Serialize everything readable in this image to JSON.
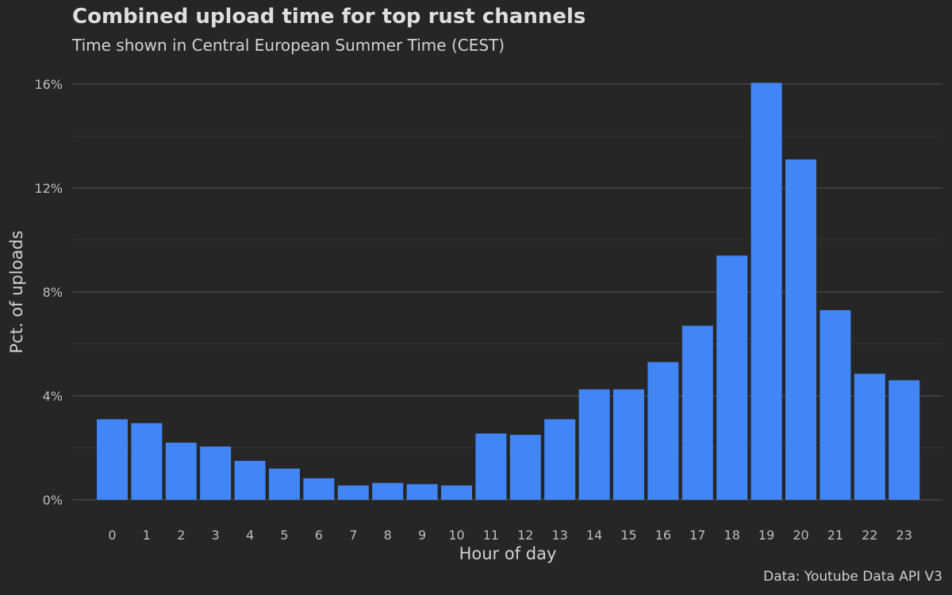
{
  "title": "Combined upload time for top rust channels",
  "subtitle": "Time shown in Central European Summer Time (CEST)",
  "caption": "Data: Youtube Data API V3",
  "colors": {
    "background": "#262626",
    "bar": "#4285f4",
    "grid_major": "#454545",
    "grid_minor": "#363636",
    "text": "#d9d9d9"
  },
  "chart_data": {
    "type": "bar",
    "title": "Combined upload time for top rust channels",
    "subtitle": "Time shown in Central European Summer Time (CEST)",
    "xlabel": "Hour of day",
    "ylabel": "Pct. of uploads",
    "categories": [
      "0",
      "1",
      "2",
      "3",
      "4",
      "5",
      "6",
      "7",
      "8",
      "9",
      "10",
      "11",
      "12",
      "13",
      "14",
      "15",
      "16",
      "17",
      "18",
      "19",
      "20",
      "21",
      "22",
      "23"
    ],
    "values": [
      3.1,
      2.95,
      2.2,
      2.05,
      1.5,
      1.2,
      0.83,
      0.55,
      0.65,
      0.6,
      0.55,
      2.55,
      2.5,
      3.1,
      4.25,
      4.25,
      5.3,
      6.7,
      9.4,
      16.05,
      13.1,
      7.3,
      4.85,
      4.6
    ],
    "ylim": [
      0,
      16
    ],
    "yticks": [
      0,
      4,
      8,
      12,
      16
    ],
    "ytick_labels": [
      "0%",
      "4%",
      "8%",
      "12%",
      "16%"
    ],
    "grid": true,
    "legend": false
  }
}
